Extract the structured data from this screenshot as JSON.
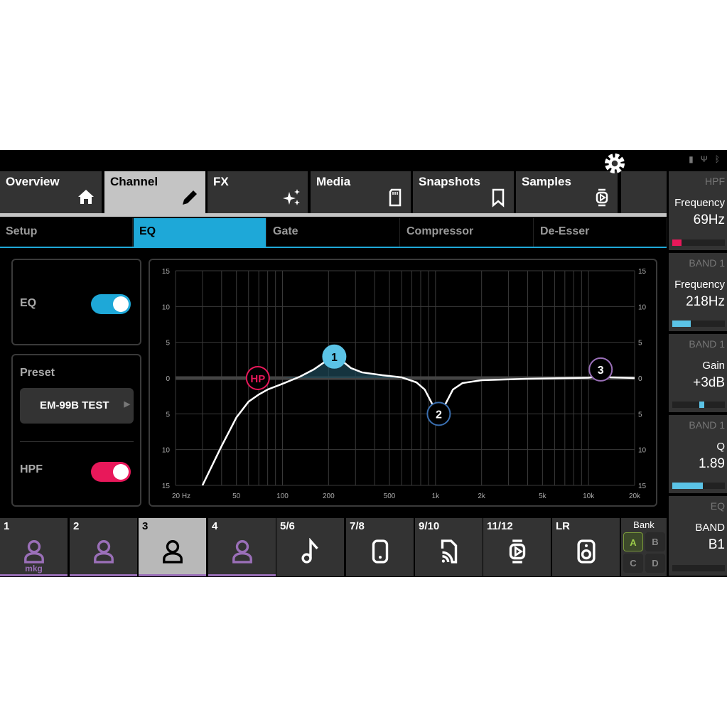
{
  "status_icons": [
    "sd-card-icon",
    "usb-icon",
    "bluetooth-icon"
  ],
  "tabs": [
    {
      "label": "Overview",
      "icon": "home-icon"
    },
    {
      "label": "Channel",
      "icon": "pencil-icon",
      "active": true
    },
    {
      "label": "FX",
      "icon": "sparkle-icon"
    },
    {
      "label": "Media",
      "icon": "sd-card-icon"
    },
    {
      "label": "Snapshots",
      "icon": "bookmark-icon"
    },
    {
      "label": "Samples",
      "icon": "sampler-icon"
    },
    {
      "label": "",
      "icon": "gear-icon"
    }
  ],
  "subtabs": [
    {
      "label": "Setup"
    },
    {
      "label": "EQ",
      "active": true
    },
    {
      "label": "Gate"
    },
    {
      "label": "Compressor"
    },
    {
      "label": "De-Esser"
    }
  ],
  "left": {
    "eq_label": "EQ",
    "eq_on": true,
    "preset_label": "Preset",
    "preset_value": "EM-99B TEST",
    "hpf_label": "HPF",
    "hpf_on": true
  },
  "right_panels": [
    {
      "header": "HPF",
      "label": "Frequency",
      "value": "69Hz",
      "level": 0.18,
      "color": "#e8185a"
    },
    {
      "header": "BAND 1",
      "label": "Frequency",
      "value": "218Hz",
      "level": 0.35,
      "color": "#5bc3e6"
    },
    {
      "header": "BAND 1",
      "label": "Gain",
      "value": "+3dB",
      "level": 0.55,
      "color": "#5bc3e6",
      "center_marker": true
    },
    {
      "header": "BAND 1",
      "label": "Q",
      "value": "1.89",
      "level": 0.58,
      "color": "#5bc3e6"
    },
    {
      "header": "EQ",
      "label": "BAND",
      "value": "B1",
      "level": 0,
      "color": "#5bc3e6"
    }
  ],
  "channels": [
    {
      "label": "1",
      "icon": "person-icon",
      "name": "mkg",
      "color": "#9a6fb8"
    },
    {
      "label": "2",
      "icon": "person-icon",
      "color": "#9a6fb8"
    },
    {
      "label": "3",
      "icon": "person-icon",
      "active": true,
      "color": "#000000"
    },
    {
      "label": "4",
      "icon": "person-icon",
      "color": "#9a6fb8"
    },
    {
      "label": "5/6",
      "icon": "music-note-icon",
      "color": "#ffffff"
    },
    {
      "label": "7/8",
      "icon": "phone-icon",
      "color": "#ffffff"
    },
    {
      "label": "9/10",
      "icon": "cast-icon",
      "color": "#ffffff"
    },
    {
      "label": "11/12",
      "icon": "sampler-icon",
      "color": "#ffffff"
    },
    {
      "label": "LR",
      "icon": "speaker-icon",
      "color": "#ffffff"
    }
  ],
  "bank": {
    "label": "Bank",
    "options": [
      "A",
      "B",
      "C",
      "D"
    ],
    "selected": "A"
  },
  "chart_data": {
    "type": "line",
    "x_scale": "log",
    "xlim": [
      20,
      20000
    ],
    "ylim": [
      -15,
      15
    ],
    "x_ticks": [
      {
        "v": 20,
        "t": "20 Hz"
      },
      {
        "v": 50,
        "t": "50"
      },
      {
        "v": 100,
        "t": "100"
      },
      {
        "v": 200,
        "t": "200"
      },
      {
        "v": 500,
        "t": "500"
      },
      {
        "v": 1000,
        "t": "1k"
      },
      {
        "v": 2000,
        "t": "2k"
      },
      {
        "v": 5000,
        "t": "5k"
      },
      {
        "v": 10000,
        "t": "10k"
      },
      {
        "v": 20000,
        "t": "20k"
      }
    ],
    "y_ticks": [
      {
        "v": 15,
        "t": "15"
      },
      {
        "v": 10,
        "t": "10"
      },
      {
        "v": 5,
        "t": "5"
      },
      {
        "v": 0,
        "t": "0"
      },
      {
        "v": -5,
        "t": "5"
      },
      {
        "v": -10,
        "t": "10"
      },
      {
        "v": -15,
        "t": "15"
      }
    ],
    "grid": true,
    "curve": [
      [
        30,
        -15
      ],
      [
        40,
        -9.5
      ],
      [
        50,
        -5.5
      ],
      [
        60,
        -3.3
      ],
      [
        70,
        -2.3
      ],
      [
        80,
        -1.6
      ],
      [
        100,
        -0.8
      ],
      [
        130,
        0.2
      ],
      [
        160,
        1.2
      ],
      [
        190,
        2.3
      ],
      [
        218,
        3
      ],
      [
        245,
        2.4
      ],
      [
        280,
        1.4
      ],
      [
        330,
        0.8
      ],
      [
        450,
        0.4
      ],
      [
        600,
        0.1
      ],
      [
        750,
        -0.6
      ],
      [
        850,
        -1.6
      ],
      [
        950,
        -3.6
      ],
      [
        1050,
        -5
      ],
      [
        1150,
        -3.8
      ],
      [
        1300,
        -1.6
      ],
      [
        1500,
        -0.7
      ],
      [
        2000,
        -0.3
      ],
      [
        4000,
        -0.1
      ],
      [
        10000,
        0.05
      ],
      [
        12000,
        0.3
      ],
      [
        14000,
        0.1
      ],
      [
        20000,
        0
      ]
    ],
    "nodes": [
      {
        "label": "HP",
        "freq": 69,
        "gain": 0,
        "color": "#e8185a",
        "fill": "none"
      },
      {
        "label": "1",
        "freq": 218,
        "gain": 3,
        "color": "#5bc3e6",
        "fill": "#5bc3e6"
      },
      {
        "label": "2",
        "freq": 1050,
        "gain": -5,
        "color": "#3a6fb0",
        "fill": "#000"
      },
      {
        "label": "3",
        "freq": 12000,
        "gain": 1.2,
        "color": "#9a6fb8",
        "fill": "#000"
      }
    ]
  }
}
